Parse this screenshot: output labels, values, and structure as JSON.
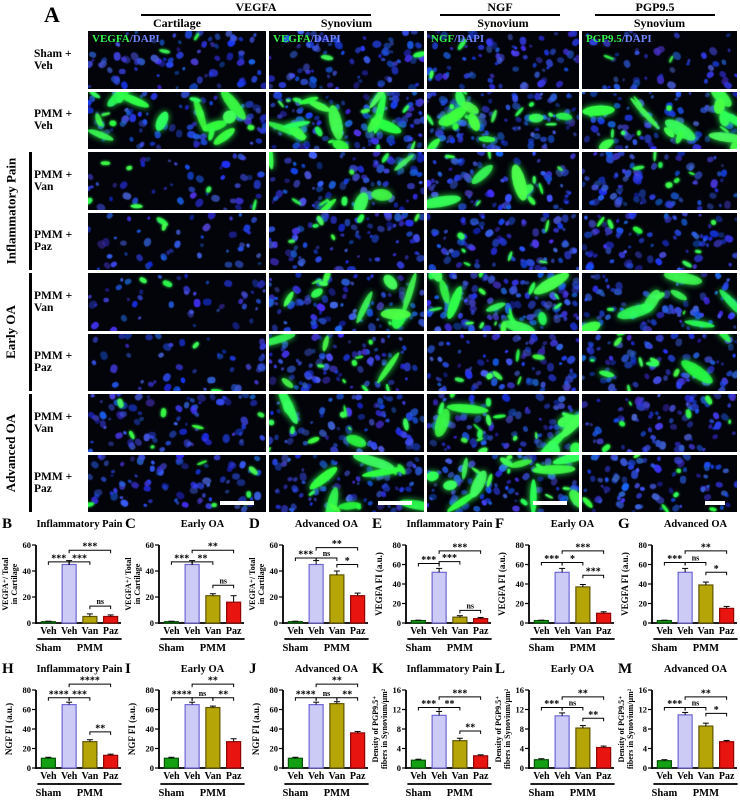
{
  "panel_a": {
    "letter": "A",
    "stain_groups": [
      {
        "label": "VEGFA",
        "span": 2
      },
      {
        "label": "NGF",
        "span": 1
      },
      {
        "label": "PGP9.5",
        "span": 1
      }
    ],
    "tissue_headers": [
      "Cartilage",
      "Synovium",
      "Synovium",
      "Synovium"
    ],
    "overlay_labels": [
      {
        "marker": "VEGFA",
        "counterstain": "/DAPI"
      },
      {
        "marker": "VEGFA",
        "counterstain": "/DAPI"
      },
      {
        "marker": "NGF",
        "counterstain": "/DAPI"
      },
      {
        "marker": "PGP9.5",
        "counterstain": "/DAPI"
      }
    ],
    "rows": [
      {
        "label": "Sham + Veh"
      },
      {
        "label": "PMM + Veh"
      },
      {
        "label": "PMM + Van"
      },
      {
        "label": "PMM + Paz"
      },
      {
        "label": "PMM + Van"
      },
      {
        "label": "PMM + Paz"
      },
      {
        "label": "PMM + Van"
      },
      {
        "label": "PMM + Paz"
      }
    ],
    "row_groups": [
      {
        "label": "Inflammatory Pain",
        "start_row": 2,
        "end_row": 3
      },
      {
        "label": "Early OA",
        "start_row": 4,
        "end_row": 5
      },
      {
        "label": "Advanced OA",
        "start_row": 6,
        "end_row": 7
      }
    ],
    "cells": [
      [
        {
          "g": 0,
          "n": 1,
          "s": 11
        },
        {
          "g": 0,
          "n": 1,
          "s": 12
        },
        {
          "g": 0,
          "n": 1,
          "s": 13
        },
        {
          "g": 0,
          "n": 0,
          "s": 14
        }
      ],
      [
        {
          "g": 3,
          "n": 1,
          "s": 21
        },
        {
          "g": 3,
          "n": 2,
          "s": 22
        },
        {
          "g": 3,
          "n": 2,
          "s": 23
        },
        {
          "g": 3,
          "n": 1,
          "s": 24
        }
      ],
      [
        {
          "g": 1,
          "n": 0,
          "s": 31
        },
        {
          "g": 2,
          "n": 1,
          "s": 32
        },
        {
          "g": 2,
          "n": 1,
          "s": 33
        },
        {
          "g": 1,
          "n": 1,
          "s": 34
        }
      ],
      [
        {
          "g": 0,
          "n": 0,
          "s": 41
        },
        {
          "g": 1,
          "n": 1,
          "s": 42
        },
        {
          "g": 1,
          "n": 1,
          "s": 43
        },
        {
          "g": 1,
          "n": 1,
          "s": 44
        }
      ],
      [
        {
          "g": 0,
          "n": 0,
          "s": 51
        },
        {
          "g": 2,
          "n": 1,
          "s": 52
        },
        {
          "g": 3,
          "n": 2,
          "s": 53
        },
        {
          "g": 2,
          "n": 1,
          "s": 54
        }
      ],
      [
        {
          "g": 0,
          "n": 0,
          "s": 61
        },
        {
          "g": 2,
          "n": 1,
          "s": 62
        },
        {
          "g": 1,
          "n": 1,
          "s": 63
        },
        {
          "g": 2,
          "n": 1,
          "s": 64
        }
      ],
      [
        {
          "g": 1,
          "n": 1,
          "s": 71
        },
        {
          "g": 2,
          "n": 1,
          "s": 72
        },
        {
          "g": 3,
          "n": 1,
          "s": 73
        },
        {
          "g": 1,
          "n": 1,
          "s": 74
        }
      ],
      [
        {
          "g": 1,
          "n": 1,
          "s": 81
        },
        {
          "g": 2,
          "n": 1,
          "s": 82
        },
        {
          "g": 3,
          "n": 1,
          "s": 83
        },
        {
          "g": 1,
          "n": 1,
          "s": 84
        }
      ]
    ],
    "colors": {
      "background": "#03030a",
      "nuclei": "#2238e8",
      "stain": "#35f24a",
      "marker_text": "#35f24a",
      "dapi_text": "#6f86ff"
    },
    "scalebar_row": 7
  },
  "chart_style": {
    "bar_fills": [
      "#13a013",
      "#cbcbf6",
      "#b5a506",
      "#e71410"
    ],
    "bar_strokes": [
      "#045204",
      "#6f66d6",
      "#5f5603",
      "#8e0404"
    ],
    "axis_color": "#000000"
  },
  "chart_data": [
    {
      "type": "bar",
      "letter": "B",
      "title": "Inflammatory Pain",
      "ylabel": [
        "VEGFA⁺/ Total",
        "in Cartilage"
      ],
      "ylim": [
        0,
        60
      ],
      "yticks": [
        0,
        20,
        40,
        60
      ],
      "categories": [
        "Veh",
        "Veh",
        "Van",
        "Paz"
      ],
      "values": [
        1,
        45,
        5,
        5
      ],
      "errors": [
        0.4,
        3,
        2,
        1.2
      ],
      "sig": [
        {
          "a": 0,
          "b": 1,
          "y": 47,
          "label": "***"
        },
        {
          "a": 1,
          "b": 2,
          "y": 47,
          "label": "***"
        },
        {
          "a": 1,
          "b": 3,
          "y": 56,
          "label": "***"
        },
        {
          "a": 2,
          "b": 3,
          "y": 13,
          "label": "ns"
        }
      ],
      "groups": [
        {
          "label": "Sham",
          "from": 0,
          "to": 0
        },
        {
          "label": "PMM",
          "from": 1,
          "to": 3
        }
      ]
    },
    {
      "type": "bar",
      "letter": "C",
      "title": "Early OA",
      "ylabel": [
        "VEGFA⁺/ Total",
        "in Cartilage"
      ],
      "ylim": [
        0,
        60
      ],
      "yticks": [
        0,
        20,
        40,
        60
      ],
      "categories": [
        "Veh",
        "Veh",
        "Van",
        "Paz"
      ],
      "values": [
        1,
        45,
        21,
        16
      ],
      "errors": [
        0.4,
        3,
        1.5,
        5
      ],
      "sig": [
        {
          "a": 0,
          "b": 1,
          "y": 47,
          "label": "***"
        },
        {
          "a": 1,
          "b": 2,
          "y": 47,
          "label": "**"
        },
        {
          "a": 1,
          "b": 3,
          "y": 56,
          "label": "**"
        },
        {
          "a": 2,
          "b": 3,
          "y": 29,
          "label": "ns"
        }
      ],
      "groups": [
        {
          "label": "Sham",
          "from": 0,
          "to": 0
        },
        {
          "label": "PMM",
          "from": 1,
          "to": 3
        }
      ]
    },
    {
      "type": "bar",
      "letter": "D",
      "title": "Advanced OA",
      "ylabel": [
        "VEGFA⁺/ Total",
        "in Cartilage"
      ],
      "ylim": [
        0,
        60
      ],
      "yticks": [
        0,
        20,
        40,
        60
      ],
      "categories": [
        "Veh",
        "Veh",
        "Van",
        "Paz"
      ],
      "values": [
        1,
        45,
        37,
        21
      ],
      "errors": [
        0.4,
        3,
        3,
        2
      ],
      "sig": [
        {
          "a": 0,
          "b": 1,
          "y": 50,
          "label": "***"
        },
        {
          "a": 1,
          "b": 2,
          "y": 50,
          "label": "ns"
        },
        {
          "a": 1,
          "b": 3,
          "y": 58,
          "label": "**"
        },
        {
          "a": 2,
          "b": 3,
          "y": 45,
          "label": "*"
        }
      ],
      "groups": [
        {
          "label": "Sham",
          "from": 0,
          "to": 0
        },
        {
          "label": "PMM",
          "from": 1,
          "to": 3
        }
      ]
    },
    {
      "type": "bar",
      "letter": "E",
      "title": "Inflammatory Pain",
      "ylabel": [
        "VEGFA FI (a.u.)"
      ],
      "ylim": [
        0,
        80
      ],
      "yticks": [
        0,
        20,
        40,
        60,
        80
      ],
      "categories": [
        "Veh",
        "Veh",
        "Van",
        "Paz"
      ],
      "values": [
        2.5,
        52,
        6,
        4.5
      ],
      "errors": [
        0.4,
        4,
        1.5,
        1.2
      ],
      "sig": [
        {
          "a": 0,
          "b": 1,
          "y": 61,
          "label": "***"
        },
        {
          "a": 1,
          "b": 2,
          "y": 63,
          "label": "***"
        },
        {
          "a": 1,
          "b": 3,
          "y": 74,
          "label": "***"
        },
        {
          "a": 2,
          "b": 3,
          "y": 13,
          "label": "ns"
        }
      ],
      "groups": [
        {
          "label": "Sham",
          "from": 0,
          "to": 0
        },
        {
          "label": "PMM",
          "from": 1,
          "to": 3
        }
      ]
    },
    {
      "type": "bar",
      "letter": "F",
      "title": "Early OA",
      "ylabel": [
        "VEGFA FI (a.u.)"
      ],
      "ylim": [
        0,
        80
      ],
      "yticks": [
        0,
        20,
        40,
        60,
        80
      ],
      "categories": [
        "Veh",
        "Veh",
        "Van",
        "Paz"
      ],
      "values": [
        2.5,
        52,
        37,
        10
      ],
      "errors": [
        0.4,
        4,
        2.5,
        1.5
      ],
      "sig": [
        {
          "a": 0,
          "b": 1,
          "y": 62,
          "label": "***"
        },
        {
          "a": 1,
          "b": 2,
          "y": 62,
          "label": "*"
        },
        {
          "a": 1,
          "b": 3,
          "y": 74,
          "label": "***"
        },
        {
          "a": 2,
          "b": 3,
          "y": 49,
          "label": "***"
        }
      ],
      "groups": [
        {
          "label": "Sham",
          "from": 0,
          "to": 0
        },
        {
          "label": "PMM",
          "from": 1,
          "to": 3
        }
      ]
    },
    {
      "type": "bar",
      "letter": "G",
      "title": "Advanced OA",
      "ylabel": [
        "VEGFA FI (a.u.)"
      ],
      "ylim": [
        0,
        80
      ],
      "yticks": [
        0,
        20,
        40,
        60,
        80
      ],
      "categories": [
        "Veh",
        "Veh",
        "Van",
        "Paz"
      ],
      "values": [
        2.5,
        52,
        39,
        15
      ],
      "errors": [
        0.4,
        4,
        3,
        2
      ],
      "sig": [
        {
          "a": 0,
          "b": 1,
          "y": 62,
          "label": "***"
        },
        {
          "a": 1,
          "b": 2,
          "y": 62,
          "label": "ns"
        },
        {
          "a": 1,
          "b": 3,
          "y": 74,
          "label": "**"
        },
        {
          "a": 2,
          "b": 3,
          "y": 52,
          "label": "*"
        }
      ],
      "groups": [
        {
          "label": "Sham",
          "from": 0,
          "to": 0
        },
        {
          "label": "PMM",
          "from": 1,
          "to": 3
        }
      ]
    },
    {
      "type": "bar",
      "letter": "H",
      "title": "Inflammatory Pain",
      "ylabel": [
        "NGF FI (a.u.)"
      ],
      "ylim": [
        0,
        80
      ],
      "yticks": [
        0,
        20,
        40,
        60,
        80
      ],
      "categories": [
        "Veh",
        "Veh",
        "Van",
        "Paz"
      ],
      "values": [
        10,
        65,
        27,
        13
      ],
      "errors": [
        1,
        2.5,
        2,
        1.2
      ],
      "sig": [
        {
          "a": 0,
          "b": 1,
          "y": 72,
          "label": "****"
        },
        {
          "a": 1,
          "b": 2,
          "y": 72,
          "label": "***"
        },
        {
          "a": 1,
          "b": 3,
          "y": 86,
          "label": "****"
        },
        {
          "a": 2,
          "b": 3,
          "y": 37,
          "label": "**"
        }
      ],
      "groups": [
        {
          "label": "Sham",
          "from": 0,
          "to": 0
        },
        {
          "label": "PMM",
          "from": 1,
          "to": 3
        }
      ]
    },
    {
      "type": "bar",
      "letter": "I",
      "title": "Early OA",
      "ylabel": [
        "NGF FI (a.u.)"
      ],
      "ylim": [
        0,
        80
      ],
      "yticks": [
        0,
        20,
        40,
        60,
        80
      ],
      "categories": [
        "Veh",
        "Veh",
        "Van",
        "Paz"
      ],
      "values": [
        10,
        65,
        62,
        27
      ],
      "errors": [
        1,
        2.5,
        1.5,
        3
      ],
      "sig": [
        {
          "a": 0,
          "b": 1,
          "y": 72,
          "label": "****"
        },
        {
          "a": 1,
          "b": 2,
          "y": 72,
          "label": "ns"
        },
        {
          "a": 1,
          "b": 3,
          "y": 86,
          "label": "**"
        },
        {
          "a": 2,
          "b": 3,
          "y": 72,
          "label": "**"
        }
      ],
      "groups": [
        {
          "label": "Sham",
          "from": 0,
          "to": 0
        },
        {
          "label": "PMM",
          "from": 1,
          "to": 3
        }
      ]
    },
    {
      "type": "bar",
      "letter": "J",
      "title": "Advanced OA",
      "ylabel": [
        "NGF FI (a.u.)"
      ],
      "ylim": [
        0,
        80
      ],
      "yticks": [
        0,
        20,
        40,
        60,
        80
      ],
      "categories": [
        "Veh",
        "Veh",
        "Van",
        "Paz"
      ],
      "values": [
        10,
        65,
        66,
        36
      ],
      "errors": [
        1,
        2.5,
        2,
        1.5
      ],
      "sig": [
        {
          "a": 0,
          "b": 1,
          "y": 72,
          "label": "****"
        },
        {
          "a": 1,
          "b": 2,
          "y": 72,
          "label": "ns"
        },
        {
          "a": 1,
          "b": 3,
          "y": 86,
          "label": "**"
        },
        {
          "a": 2,
          "b": 3,
          "y": 72,
          "label": "**"
        }
      ],
      "groups": [
        {
          "label": "Sham",
          "from": 0,
          "to": 0
        },
        {
          "label": "PMM",
          "from": 1,
          "to": 3
        }
      ]
    },
    {
      "type": "bar",
      "letter": "K",
      "title": "Inflammatory Pain",
      "ylabel": [
        "Density of PGP9.5⁺",
        "fibers in Synovium/μm²"
      ],
      "ylim": [
        0,
        16
      ],
      "yticks": [
        0,
        4,
        8,
        12,
        16
      ],
      "categories": [
        "Veh",
        "Veh",
        "Van",
        "Paz"
      ],
      "values": [
        1.6,
        10.8,
        5.6,
        2.5
      ],
      "errors": [
        0.2,
        0.8,
        0.5,
        0.2
      ],
      "sig": [
        {
          "a": 0,
          "b": 1,
          "y": 12.4,
          "label": "***"
        },
        {
          "a": 1,
          "b": 2,
          "y": 12.4,
          "label": "**"
        },
        {
          "a": 1,
          "b": 3,
          "y": 14.6,
          "label": "***"
        },
        {
          "a": 2,
          "b": 3,
          "y": 7.6,
          "label": "**"
        }
      ],
      "groups": [
        {
          "label": "Sham",
          "from": 0,
          "to": 0
        },
        {
          "label": "PMM",
          "from": 1,
          "to": 3
        }
      ]
    },
    {
      "type": "bar",
      "letter": "L",
      "title": "Early OA",
      "ylabel": [
        "Density of PGP9.5⁺",
        "fibers in Synovium/μm²"
      ],
      "ylim": [
        0,
        16
      ],
      "yticks": [
        0,
        4,
        8,
        12,
        16
      ],
      "categories": [
        "Veh",
        "Veh",
        "Van",
        "Paz"
      ],
      "values": [
        1.7,
        10.7,
        8.2,
        4.2
      ],
      "errors": [
        0.2,
        0.6,
        0.5,
        0.3
      ],
      "sig": [
        {
          "a": 0,
          "b": 1,
          "y": 12.4,
          "label": "***"
        },
        {
          "a": 1,
          "b": 2,
          "y": 12.4,
          "label": "ns"
        },
        {
          "a": 1,
          "b": 3,
          "y": 14.6,
          "label": "**"
        },
        {
          "a": 2,
          "b": 3,
          "y": 10.2,
          "label": "**"
        }
      ],
      "groups": [
        {
          "label": "Sham",
          "from": 0,
          "to": 0
        },
        {
          "label": "PMM",
          "from": 1,
          "to": 3
        }
      ]
    },
    {
      "type": "bar",
      "letter": "M",
      "title": "Advanced OA",
      "ylabel": [
        "Density of PGP9.5⁺",
        "fibers in Synovium/μm²"
      ],
      "ylim": [
        0,
        16
      ],
      "yticks": [
        0,
        4,
        8,
        12,
        16
      ],
      "categories": [
        "Veh",
        "Veh",
        "Van",
        "Paz"
      ],
      "values": [
        1.5,
        10.9,
        8.6,
        5.4
      ],
      "errors": [
        0.2,
        0.5,
        0.6,
        0.25
      ],
      "sig": [
        {
          "a": 0,
          "b": 1,
          "y": 12.4,
          "label": "***"
        },
        {
          "a": 1,
          "b": 2,
          "y": 12.4,
          "label": "ns"
        },
        {
          "a": 1,
          "b": 3,
          "y": 14.6,
          "label": "**"
        },
        {
          "a": 2,
          "b": 3,
          "y": 11.2,
          "label": "*"
        }
      ],
      "groups": [
        {
          "label": "Sham",
          "from": 0,
          "to": 0
        },
        {
          "label": "PMM",
          "from": 1,
          "to": 3
        }
      ]
    }
  ]
}
